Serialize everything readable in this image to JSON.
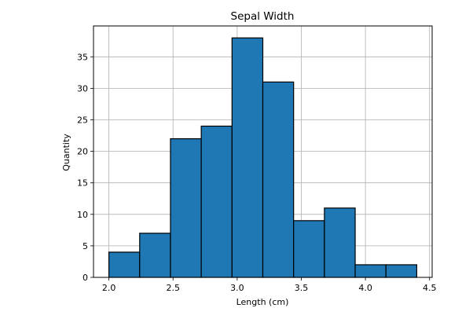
{
  "chart_data": {
    "type": "bar",
    "title": "Sepal Width",
    "xlabel": "Length (cm)",
    "ylabel": "Quantity",
    "xlim": [
      1.88,
      4.52
    ],
    "ylim": [
      0,
      39.9
    ],
    "grid": true,
    "bin_edges": [
      2.0,
      2.24,
      2.48,
      2.72,
      2.96,
      3.2,
      3.44,
      3.68,
      3.92,
      4.16,
      4.4
    ],
    "values": [
      4,
      7,
      22,
      24,
      38,
      31,
      9,
      11,
      2,
      2
    ],
    "xticks": [
      2.0,
      2.5,
      3.0,
      3.5,
      4.0,
      4.5
    ],
    "xtick_labels": [
      "2.0",
      "2.5",
      "3.0",
      "3.5",
      "4.0",
      "4.5"
    ],
    "yticks": [
      0,
      5,
      10,
      15,
      20,
      25,
      30,
      35
    ],
    "ytick_labels": [
      "0",
      "5",
      "10",
      "15",
      "20",
      "25",
      "30",
      "35"
    ],
    "bar_color": "#1f77b4",
    "edge_color": "#000000",
    "grid_color": "#b0b0b0"
  }
}
